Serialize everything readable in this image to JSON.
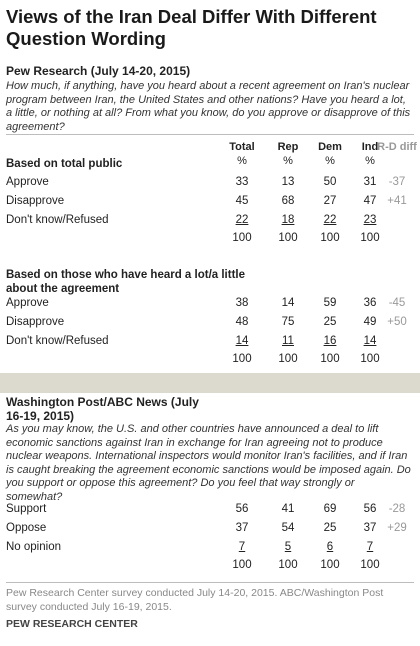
{
  "title": "Views of the Iran Deal Differ With Different Question Wording",
  "columns": [
    "Total",
    "Rep",
    "Dem",
    "Ind",
    "R-D diff"
  ],
  "pct_symbol": "%",
  "total_label": "100",
  "sections": {
    "pew": {
      "source": "Pew Research (July 14-20, 2015)",
      "question": "How much, if anything, have you heard about a recent agreement on Iran's nuclear program between Iran, the United States and other nations? Have you heard a lot, a little, or nothing at all? From what you know, do you approve or disapprove of this agreement?"
    },
    "wapo": {
      "source": "Washington Post/ABC News (July 16-19, 2015)",
      "question": "As you may know, the U.S. and other countries have announced a deal to lift economic sanctions against Iran in exchange for Iran agreeing not to produce nuclear weapons. International inspectors would monitor Iran's facilities, and if Iran is caught breaking the agreement economic sanctions would be imposed again. Do you support or oppose this agreement? Do you feel that way strongly or somewhat?"
    }
  },
  "chart_data": {
    "type": "table",
    "title": "Views of the Iran Deal Differ With Different Question Wording",
    "columns": [
      "Total",
      "Rep",
      "Dem",
      "Ind",
      "R-D diff"
    ],
    "groups": [
      {
        "label": "Based on total public",
        "rows": [
          {
            "label": "Approve",
            "values": [
              "33",
              "13",
              "50",
              "31"
            ],
            "diff": "-37"
          },
          {
            "label": "Disapprove",
            "values": [
              "45",
              "68",
              "27",
              "47"
            ],
            "diff": "+41"
          },
          {
            "label": "Don't know/Refused",
            "values": [
              "22",
              "18",
              "22",
              "23"
            ],
            "diff": ""
          }
        ]
      },
      {
        "label": "Based on those who have heard a lot/a little about the agreement",
        "rows": [
          {
            "label": "Approve",
            "values": [
              "38",
              "14",
              "59",
              "36"
            ],
            "diff": "-45"
          },
          {
            "label": "Disapprove",
            "values": [
              "48",
              "75",
              "25",
              "49"
            ],
            "diff": "+50"
          },
          {
            "label": "Don't know/Refused",
            "values": [
              "14",
              "11",
              "16",
              "14"
            ],
            "diff": ""
          }
        ]
      },
      {
        "label": "",
        "rows": [
          {
            "label": "Support",
            "values": [
              "56",
              "41",
              "69",
              "56"
            ],
            "diff": "-28"
          },
          {
            "label": "Oppose",
            "values": [
              "37",
              "54",
              "25",
              "37"
            ],
            "diff": "+29"
          },
          {
            "label": "No opinion",
            "values": [
              "7",
              "5",
              "6",
              "7"
            ],
            "diff": ""
          }
        ]
      }
    ]
  },
  "note": "Pew Research Center survey conducted July 14-20, 2015. ABC/Washington Post survey conducted July 16-19, 2015.",
  "credit": "PEW RESEARCH CENTER"
}
